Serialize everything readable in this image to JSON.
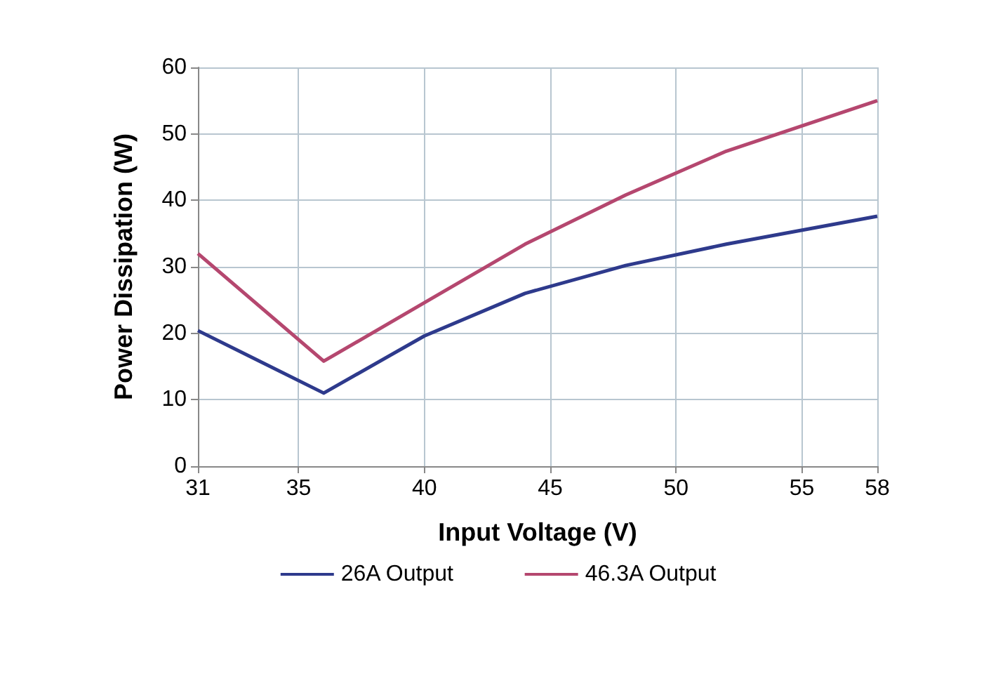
{
  "chart_data": {
    "type": "line",
    "xlabel": "Input Voltage (V)",
    "ylabel": "Power Dissipation (W)",
    "xlim": [
      31,
      58
    ],
    "xticks": [
      31,
      35,
      40,
      45,
      50,
      55,
      58
    ],
    "ylim": [
      0,
      60
    ],
    "yticks": [
      0,
      10,
      20,
      30,
      40,
      50,
      60
    ],
    "grid": true,
    "legend": "bottom",
    "marker": "none",
    "line_style": "solid",
    "x": [
      31,
      36,
      40,
      44,
      48,
      52,
      58
    ],
    "series": [
      {
        "name": "26A Output",
        "color": "#2e3a8c",
        "values": [
          20.4,
          11,
          19.6,
          26,
          30.2,
          33.4,
          37.6
        ]
      },
      {
        "name": "46.3A Output",
        "color": "#b5476f",
        "values": [
          32,
          15.8,
          24.6,
          33.4,
          40.8,
          47.4,
          55
        ]
      }
    ]
  }
}
